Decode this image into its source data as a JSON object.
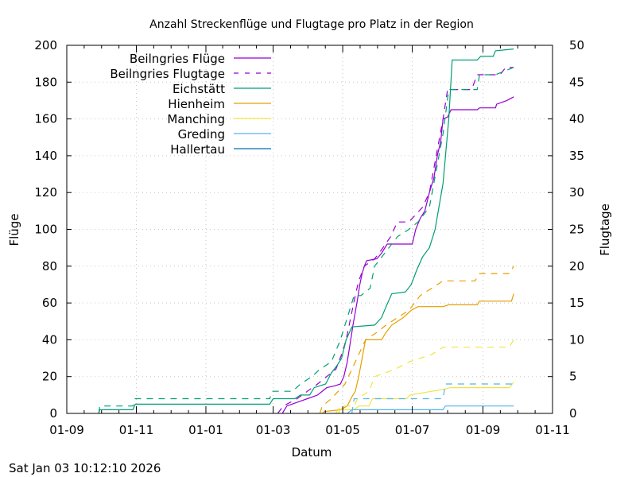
{
  "chart_data": {
    "type": "line",
    "title": "Anzahl Streckenflüge und Flugtage pro Platz in der Region",
    "xlabel": "Datum",
    "ylabel": "Flüge",
    "y2label": "Flugtage",
    "x_origin_date": "2024-09-01",
    "x_unit": "days since x_origin_date",
    "xlim": [
      0,
      426
    ],
    "ylim": [
      0,
      200
    ],
    "y2lim": [
      0,
      50
    ],
    "xticks": [
      {
        "value": 0,
        "label": "01-09"
      },
      {
        "value": 61,
        "label": "01-11"
      },
      {
        "value": 122,
        "label": "01-01"
      },
      {
        "value": 181,
        "label": "01-03"
      },
      {
        "value": 242,
        "label": "01-05"
      },
      {
        "value": 303,
        "label": "01-07"
      },
      {
        "value": 365,
        "label": "01-09"
      },
      {
        "value": 426,
        "label": "01-11"
      }
    ],
    "yticks": [
      0,
      20,
      40,
      60,
      80,
      100,
      120,
      140,
      160,
      180,
      200
    ],
    "y2ticks": [
      0,
      5,
      10,
      15,
      20,
      25,
      30,
      35,
      40,
      45,
      50
    ],
    "grid": true,
    "legend_position": "top-left",
    "series": [
      {
        "name": "Beilngries Flüge",
        "axis": "y",
        "style": "solid",
        "color": "#9400d3",
        "points": [
          [
            189,
            0
          ],
          [
            193,
            4
          ],
          [
            202,
            6
          ],
          [
            211,
            8
          ],
          [
            220,
            10
          ],
          [
            228,
            14
          ],
          [
            235,
            15
          ],
          [
            240,
            16
          ],
          [
            243,
            20
          ],
          [
            246,
            28
          ],
          [
            248,
            36
          ],
          [
            250,
            44
          ],
          [
            251,
            48
          ],
          [
            253,
            55
          ],
          [
            255,
            62
          ],
          [
            257,
            70
          ],
          [
            259,
            76
          ],
          [
            261,
            80
          ],
          [
            263,
            83
          ],
          [
            272,
            84
          ],
          [
            276,
            87
          ],
          [
            281,
            92
          ],
          [
            303,
            92
          ],
          [
            306,
            100
          ],
          [
            310,
            106
          ],
          [
            314,
            110
          ],
          [
            318,
            120
          ],
          [
            322,
            128
          ],
          [
            325,
            140
          ],
          [
            328,
            148
          ],
          [
            330,
            160
          ],
          [
            334,
            161
          ],
          [
            337,
            165
          ],
          [
            360,
            165
          ],
          [
            362,
            166
          ],
          [
            376,
            166
          ],
          [
            377,
            168
          ],
          [
            386,
            170
          ],
          [
            392,
            172
          ]
        ]
      },
      {
        "name": "Beilngries Flugtage",
        "axis": "y2",
        "style": "dashed",
        "color": "#9400d3",
        "points": [
          [
            185,
            0
          ],
          [
            190,
            1
          ],
          [
            202,
            2
          ],
          [
            211,
            3
          ],
          [
            220,
            4
          ],
          [
            228,
            5
          ],
          [
            236,
            6
          ],
          [
            241,
            8
          ],
          [
            245,
            10
          ],
          [
            249,
            13
          ],
          [
            253,
            16
          ],
          [
            256,
            18
          ],
          [
            261,
            20
          ],
          [
            270,
            21
          ],
          [
            275,
            22
          ],
          [
            284,
            24
          ],
          [
            290,
            26
          ],
          [
            300,
            26
          ],
          [
            306,
            27
          ],
          [
            312,
            28
          ],
          [
            318,
            30
          ],
          [
            324,
            35
          ],
          [
            330,
            40
          ],
          [
            334,
            44
          ],
          [
            355,
            44
          ],
          [
            360,
            46
          ],
          [
            380,
            46
          ],
          [
            385,
            47
          ],
          [
            392,
            47
          ]
        ]
      },
      {
        "name": "Eichstätt",
        "axis": "y",
        "style": "solid",
        "color": "#009e73",
        "points": [
          [
            28,
            0
          ],
          [
            29,
            2
          ],
          [
            58,
            2
          ],
          [
            60,
            5
          ],
          [
            178,
            5
          ],
          [
            181,
            8
          ],
          [
            200,
            8
          ],
          [
            205,
            10
          ],
          [
            213,
            10
          ],
          [
            217,
            14
          ],
          [
            227,
            16
          ],
          [
            232,
            22
          ],
          [
            237,
            26
          ],
          [
            241,
            30
          ],
          [
            245,
            40
          ],
          [
            250,
            47
          ],
          [
            270,
            48
          ],
          [
            276,
            52
          ],
          [
            280,
            58
          ],
          [
            285,
            65
          ],
          [
            297,
            66
          ],
          [
            302,
            70
          ],
          [
            307,
            78
          ],
          [
            312,
            85
          ],
          [
            318,
            90
          ],
          [
            323,
            100
          ],
          [
            330,
            125
          ],
          [
            335,
            160
          ],
          [
            338,
            192
          ],
          [
            360,
            192
          ],
          [
            363,
            194
          ],
          [
            374,
            194
          ],
          [
            376,
            197
          ],
          [
            392,
            198
          ]
        ]
      },
      {
        "name": "Eichstätt Flugtage",
        "axis": "y2",
        "style": "dashed",
        "color": "#009e73",
        "points": [
          [
            28,
            0
          ],
          [
            29,
            1
          ],
          [
            58,
            1
          ],
          [
            60,
            2
          ],
          [
            178,
            2
          ],
          [
            180,
            3
          ],
          [
            198,
            3
          ],
          [
            205,
            4
          ],
          [
            215,
            5
          ],
          [
            222,
            6
          ],
          [
            232,
            7
          ],
          [
            240,
            10
          ],
          [
            248,
            14
          ],
          [
            252,
            16
          ],
          [
            258,
            16
          ],
          [
            266,
            17
          ],
          [
            270,
            20
          ],
          [
            280,
            22
          ],
          [
            290,
            24
          ],
          [
            300,
            25
          ],
          [
            308,
            26
          ],
          [
            318,
            28
          ],
          [
            324,
            33
          ],
          [
            330,
            38
          ],
          [
            335,
            44
          ],
          [
            360,
            44
          ],
          [
            362,
            46
          ],
          [
            372,
            46
          ],
          [
            376,
            46
          ],
          [
            392,
            47
          ]
        ]
      },
      {
        "name": "Hienheim",
        "axis": "y",
        "style": "solid",
        "color": "#e69f00",
        "points": [
          [
            224,
            0
          ],
          [
            226,
            1
          ],
          [
            240,
            2
          ],
          [
            246,
            4
          ],
          [
            250,
            9
          ],
          [
            253,
            12
          ],
          [
            256,
            20
          ],
          [
            259,
            30
          ],
          [
            262,
            40
          ],
          [
            276,
            40
          ],
          [
            280,
            44
          ],
          [
            285,
            48
          ],
          [
            295,
            52
          ],
          [
            302,
            56
          ],
          [
            308,
            58
          ],
          [
            330,
            58
          ],
          [
            335,
            59
          ],
          [
            360,
            59
          ],
          [
            362,
            61
          ],
          [
            390,
            61
          ],
          [
            392,
            65
          ]
        ]
      },
      {
        "name": "Hienheim Flugtage",
        "axis": "y2",
        "style": "dashed",
        "color": "#e69f00",
        "points": [
          [
            222,
            0
          ],
          [
            224,
            1
          ],
          [
            232,
            2
          ],
          [
            238,
            3
          ],
          [
            244,
            4
          ],
          [
            250,
            6
          ],
          [
            256,
            8
          ],
          [
            262,
            10
          ],
          [
            272,
            11
          ],
          [
            280,
            12
          ],
          [
            290,
            13
          ],
          [
            300,
            14
          ],
          [
            310,
            16
          ],
          [
            320,
            17
          ],
          [
            330,
            18
          ],
          [
            358,
            18
          ],
          [
            362,
            19
          ],
          [
            388,
            19
          ],
          [
            392,
            20
          ]
        ]
      },
      {
        "name": "Manching",
        "axis": "y",
        "style": "solid",
        "color": "#f0e442",
        "points": [
          [
            238,
            0
          ],
          [
            240,
            2
          ],
          [
            252,
            2
          ],
          [
            256,
            4
          ],
          [
            265,
            4
          ],
          [
            268,
            8
          ],
          [
            298,
            8
          ],
          [
            301,
            10
          ],
          [
            320,
            12
          ],
          [
            330,
            13
          ],
          [
            336,
            14
          ],
          [
            388,
            14
          ],
          [
            392,
            17
          ]
        ]
      },
      {
        "name": "Manching Flugtage",
        "axis": "y2",
        "style": "dashed",
        "color": "#f0e442",
        "points": [
          [
            236,
            0
          ],
          [
            240,
            1
          ],
          [
            252,
            1
          ],
          [
            255,
            2
          ],
          [
            265,
            3
          ],
          [
            270,
            5
          ],
          [
            288,
            6
          ],
          [
            300,
            7
          ],
          [
            320,
            8
          ],
          [
            330,
            9
          ],
          [
            388,
            9
          ],
          [
            392,
            10
          ]
        ]
      },
      {
        "name": "Greding",
        "axis": "y",
        "style": "solid",
        "color": "#56b4e9",
        "points": [
          [
            246,
            0
          ],
          [
            248,
            1
          ],
          [
            250,
            2
          ],
          [
            330,
            2
          ],
          [
            332,
            4
          ],
          [
            392,
            4
          ]
        ]
      },
      {
        "name": "Greding Flugtage",
        "axis": "y2",
        "style": "dashed",
        "color": "#56b4e9",
        "points": [
          [
            250,
            0
          ],
          [
            252,
            2
          ],
          [
            330,
            2
          ],
          [
            332,
            4
          ],
          [
            392,
            4
          ]
        ]
      },
      {
        "name": "Hallertau",
        "axis": "y",
        "style": "solid",
        "color": "#0072b2",
        "points": []
      }
    ],
    "legend": [
      {
        "label": "Beilngries Flüge",
        "color": "#9400d3",
        "style": "solid"
      },
      {
        "label": "Beilngries Flugtage",
        "color": "#9400d3",
        "style": "dashed"
      },
      {
        "label": "Eichstätt",
        "color": "#009e73",
        "style": "solid"
      },
      {
        "label": "Hienheim",
        "color": "#e69f00",
        "style": "solid"
      },
      {
        "label": "Manching",
        "color": "#f0e442",
        "style": "solid"
      },
      {
        "label": "Greding",
        "color": "#56b4e9",
        "style": "solid"
      },
      {
        "label": "Hallertau",
        "color": "#0072b2",
        "style": "solid"
      }
    ]
  },
  "timestamp": "Sat Jan 03 10:12:10 2026"
}
